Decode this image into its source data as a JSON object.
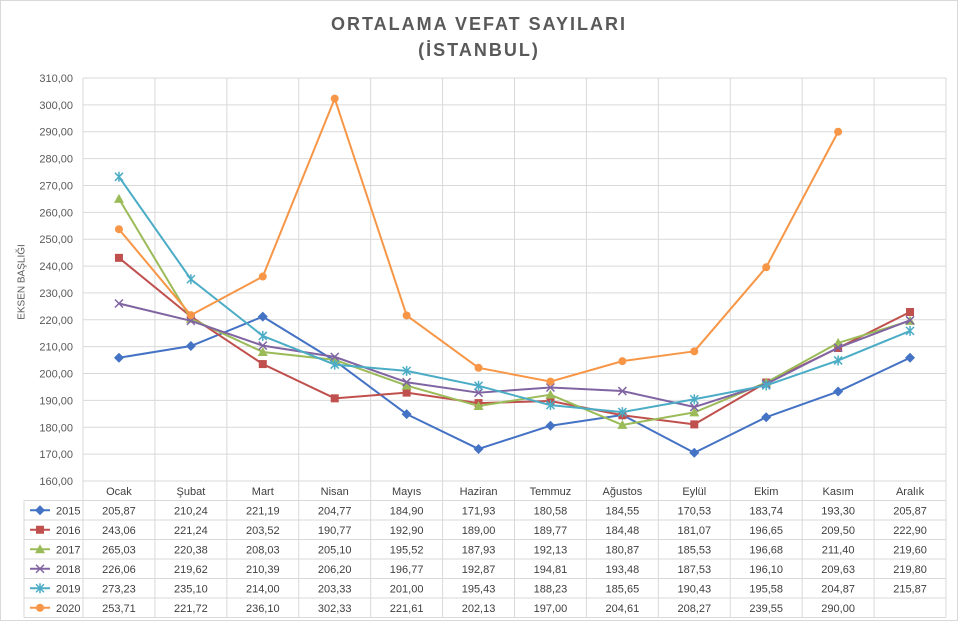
{
  "chart_data": {
    "type": "line",
    "title": "ORTALAMA VEFAT SAYILARI",
    "subtitle": "(İSTANBUL)",
    "xlabel": "",
    "ylabel": "EKSEN BAŞLIĞI",
    "ylim": [
      160,
      310
    ],
    "y_ticks": [
      "160,00",
      "170,00",
      "180,00",
      "190,00",
      "200,00",
      "210,00",
      "220,00",
      "230,00",
      "240,00",
      "250,00",
      "260,00",
      "270,00",
      "280,00",
      "290,00",
      "300,00",
      "310,00"
    ],
    "grid": true,
    "legend": "data-table",
    "categories": [
      "Ocak",
      "Şubat",
      "Mart",
      "Nisan",
      "Mayıs",
      "Haziran",
      "Temmuz",
      "Ağustos",
      "Eylül",
      "Ekim",
      "Kasım",
      "Aralık"
    ],
    "series": [
      {
        "name": "2015",
        "color": "#4472c4",
        "marker": "diamond",
        "values": [
          205.87,
          210.24,
          221.19,
          204.77,
          184.9,
          171.93,
          180.58,
          184.55,
          170.53,
          183.74,
          193.3,
          205.87
        ],
        "labels": [
          "205,87",
          "210,24",
          "221,19",
          "204,77",
          "184,90",
          "171,93",
          "180,58",
          "184,55",
          "170,53",
          "183,74",
          "193,30",
          "205,87"
        ]
      },
      {
        "name": "2016",
        "color": "#c0504d",
        "marker": "square",
        "values": [
          243.06,
          221.24,
          203.52,
          190.77,
          192.9,
          189.0,
          189.77,
          184.48,
          181.07,
          196.65,
          209.5,
          222.9
        ],
        "labels": [
          "243,06",
          "221,24",
          "203,52",
          "190,77",
          "192,90",
          "189,00",
          "189,77",
          "184,48",
          "181,07",
          "196,65",
          "209,50",
          "222,90"
        ]
      },
      {
        "name": "2017",
        "color": "#9bbb59",
        "marker": "triangle",
        "values": [
          265.03,
          220.38,
          208.03,
          205.1,
          195.52,
          187.93,
          192.13,
          180.87,
          185.53,
          196.68,
          211.4,
          219.6
        ],
        "labels": [
          "265,03",
          "220,38",
          "208,03",
          "205,10",
          "195,52",
          "187,93",
          "192,13",
          "180,87",
          "185,53",
          "196,68",
          "211,40",
          "219,60"
        ]
      },
      {
        "name": "2018",
        "color": "#8064a2",
        "marker": "x",
        "values": [
          226.06,
          219.62,
          210.39,
          206.2,
          196.77,
          192.87,
          194.81,
          193.48,
          187.53,
          196.1,
          209.63,
          219.8
        ],
        "labels": [
          "226,06",
          "219,62",
          "210,39",
          "206,20",
          "196,77",
          "192,87",
          "194,81",
          "193,48",
          "187,53",
          "196,10",
          "209,63",
          "219,80"
        ]
      },
      {
        "name": "2019",
        "color": "#4bacc6",
        "marker": "star",
        "values": [
          273.23,
          235.1,
          214.0,
          203.33,
          201.0,
          195.43,
          188.23,
          185.65,
          190.43,
          195.58,
          204.87,
          215.87
        ],
        "labels": [
          "273,23",
          "235,10",
          "214,00",
          "203,33",
          "201,00",
          "195,43",
          "188,23",
          "185,65",
          "190,43",
          "195,58",
          "204,87",
          "215,87"
        ]
      },
      {
        "name": "2020",
        "color": "#f79646",
        "marker": "circle",
        "values": [
          253.71,
          221.72,
          236.1,
          302.33,
          221.61,
          202.13,
          197.0,
          204.61,
          208.27,
          239.55,
          290.0,
          null
        ],
        "labels": [
          "253,71",
          "221,72",
          "236,10",
          "302,33",
          "221,61",
          "202,13",
          "197,00",
          "204,61",
          "208,27",
          "239,55",
          "290,00",
          ""
        ]
      }
    ]
  }
}
